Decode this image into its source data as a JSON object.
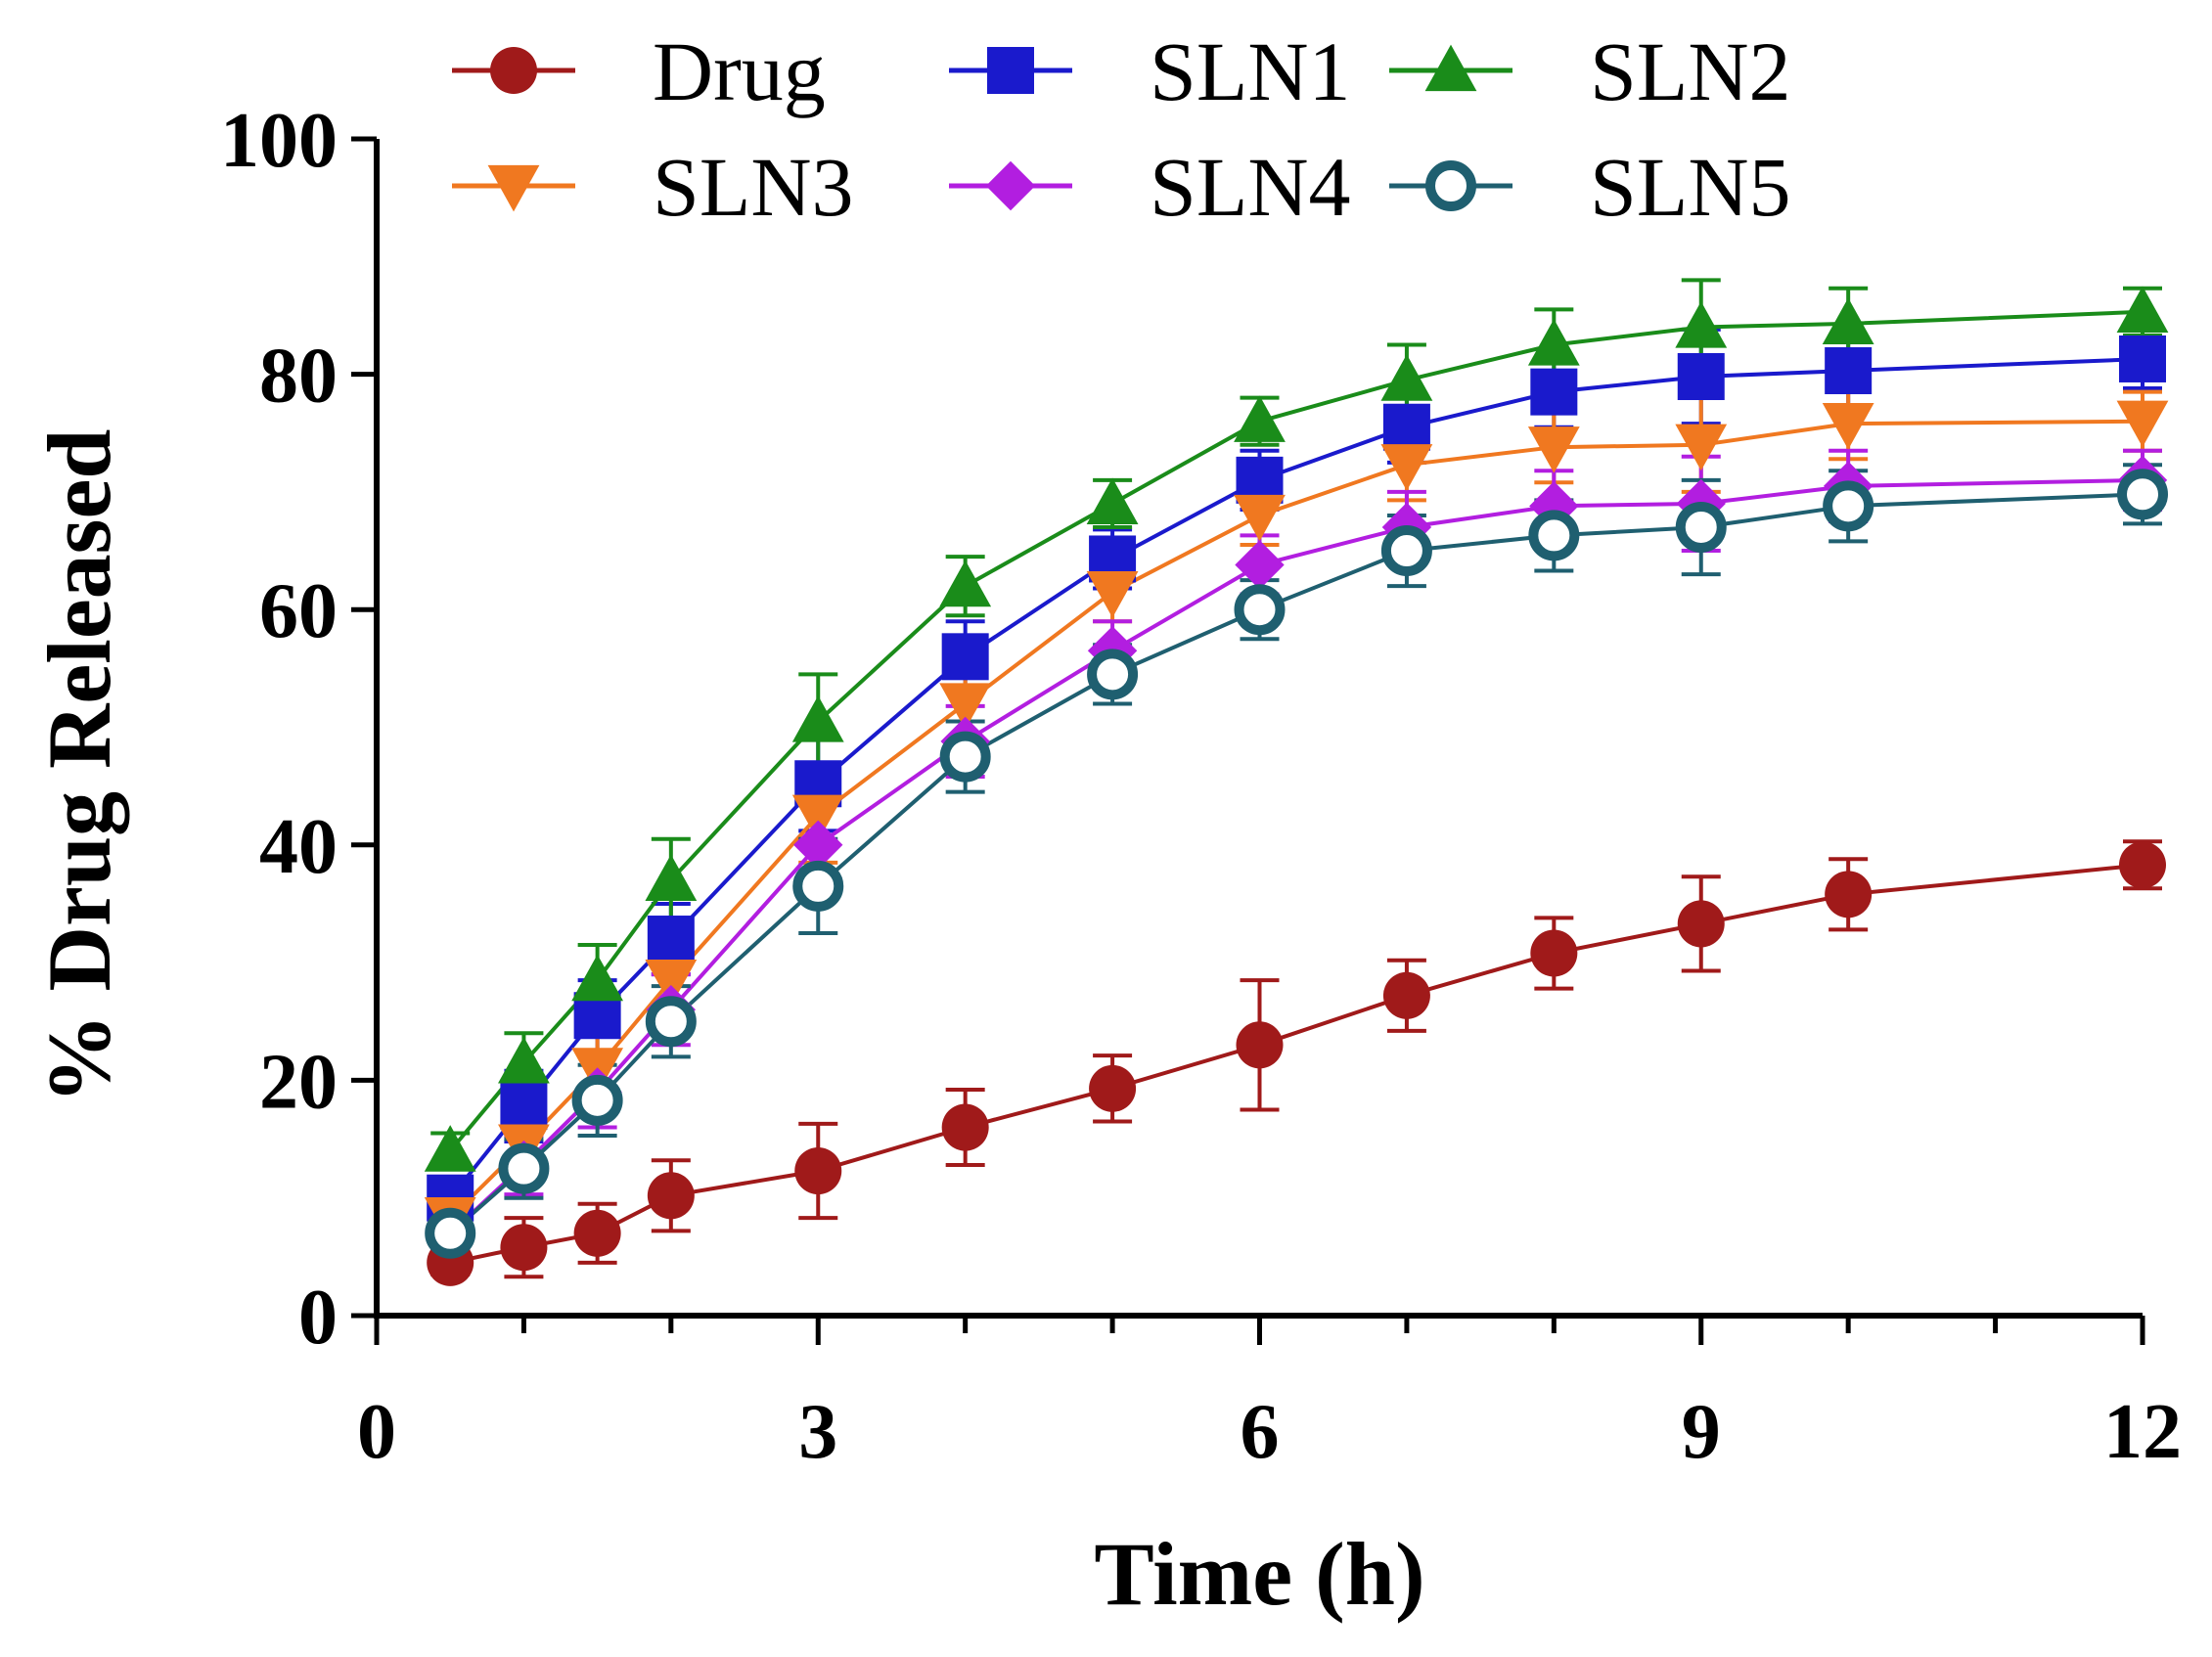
{
  "chart_data": {
    "type": "line",
    "title": "",
    "xlabel": "Time (h)",
    "ylabel": "% Drug Released",
    "xlim": [
      0,
      12
    ],
    "ylim": [
      0,
      100
    ],
    "xticks": [
      0,
      3,
      6,
      9,
      12
    ],
    "xticks_minor": [
      1,
      2,
      4,
      5,
      7,
      8,
      10,
      11
    ],
    "yticks": [
      0,
      20,
      40,
      60,
      80,
      100
    ],
    "grid": false,
    "legend_position": "top",
    "x": [
      0.5,
      1,
      1.5,
      2,
      3,
      4,
      5,
      6,
      7,
      8,
      9,
      10,
      12
    ],
    "series": [
      {
        "name": "Drug",
        "color": "#a01a1a",
        "marker": "circle",
        "values": [
          4.5,
          5.8,
          7,
          10.2,
          12.3,
          16,
          19.3,
          23,
          27.2,
          30.8,
          33.3,
          35.8,
          38.3
        ],
        "errors": [
          1,
          2.5,
          2.5,
          3,
          4,
          3.2,
          2.8,
          5.5,
          3,
          3,
          4,
          3,
          2
        ]
      },
      {
        "name": "SLN1",
        "color": "#1a1acc",
        "marker": "square",
        "values": [
          10,
          17.8,
          25.5,
          32,
          45.2,
          56,
          64.3,
          71,
          75.5,
          78.5,
          79.8,
          80.3,
          81.3
        ],
        "errors": [
          1.5,
          3,
          3,
          3,
          4,
          3,
          2.5,
          2.5,
          3,
          3,
          4,
          3,
          2.5
        ]
      },
      {
        "name": "SLN2",
        "color": "#1a8c1a",
        "marker": "triangle-up",
        "values": [
          14,
          21.5,
          28.5,
          37,
          50.5,
          62,
          69,
          76,
          79.5,
          82.5,
          84,
          84.3,
          85.3
        ],
        "errors": [
          1.5,
          2.5,
          3,
          3.5,
          4,
          2.5,
          2,
          2,
          3,
          3,
          4,
          3,
          2
        ]
      },
      {
        "name": "SLN3",
        "color": "#f07820",
        "marker": "triangle-down",
        "values": [
          8.3,
          14.5,
          21,
          28.5,
          42.5,
          52,
          61.5,
          68,
          72.3,
          73.8,
          74,
          75.8,
          76
        ],
        "errors": [
          1.5,
          2.5,
          3,
          3,
          4,
          3,
          2.5,
          2.5,
          3,
          3,
          4,
          3,
          2.5
        ]
      },
      {
        "name": "SLN4",
        "color": "#b21ee0",
        "marker": "diamond",
        "values": [
          7,
          12.8,
          19,
          26,
          40,
          48.8,
          56.5,
          63.8,
          67,
          68.8,
          69,
          70.5,
          71
        ],
        "errors": [
          1.5,
          2.5,
          3,
          3,
          4,
          3,
          2.5,
          2.5,
          3,
          3,
          4,
          3,
          2.5
        ]
      },
      {
        "name": "SLN5",
        "color": "#1f5f70",
        "marker": "circle-open",
        "values": [
          7,
          12.5,
          18.3,
          25,
          36.5,
          47.5,
          54.5,
          60,
          65,
          66.3,
          67,
          68.8,
          69.8
        ],
        "errors": [
          1.5,
          2.5,
          3,
          3,
          4,
          3,
          2.5,
          2.5,
          3,
          3,
          4,
          3,
          2.5
        ]
      }
    ]
  }
}
